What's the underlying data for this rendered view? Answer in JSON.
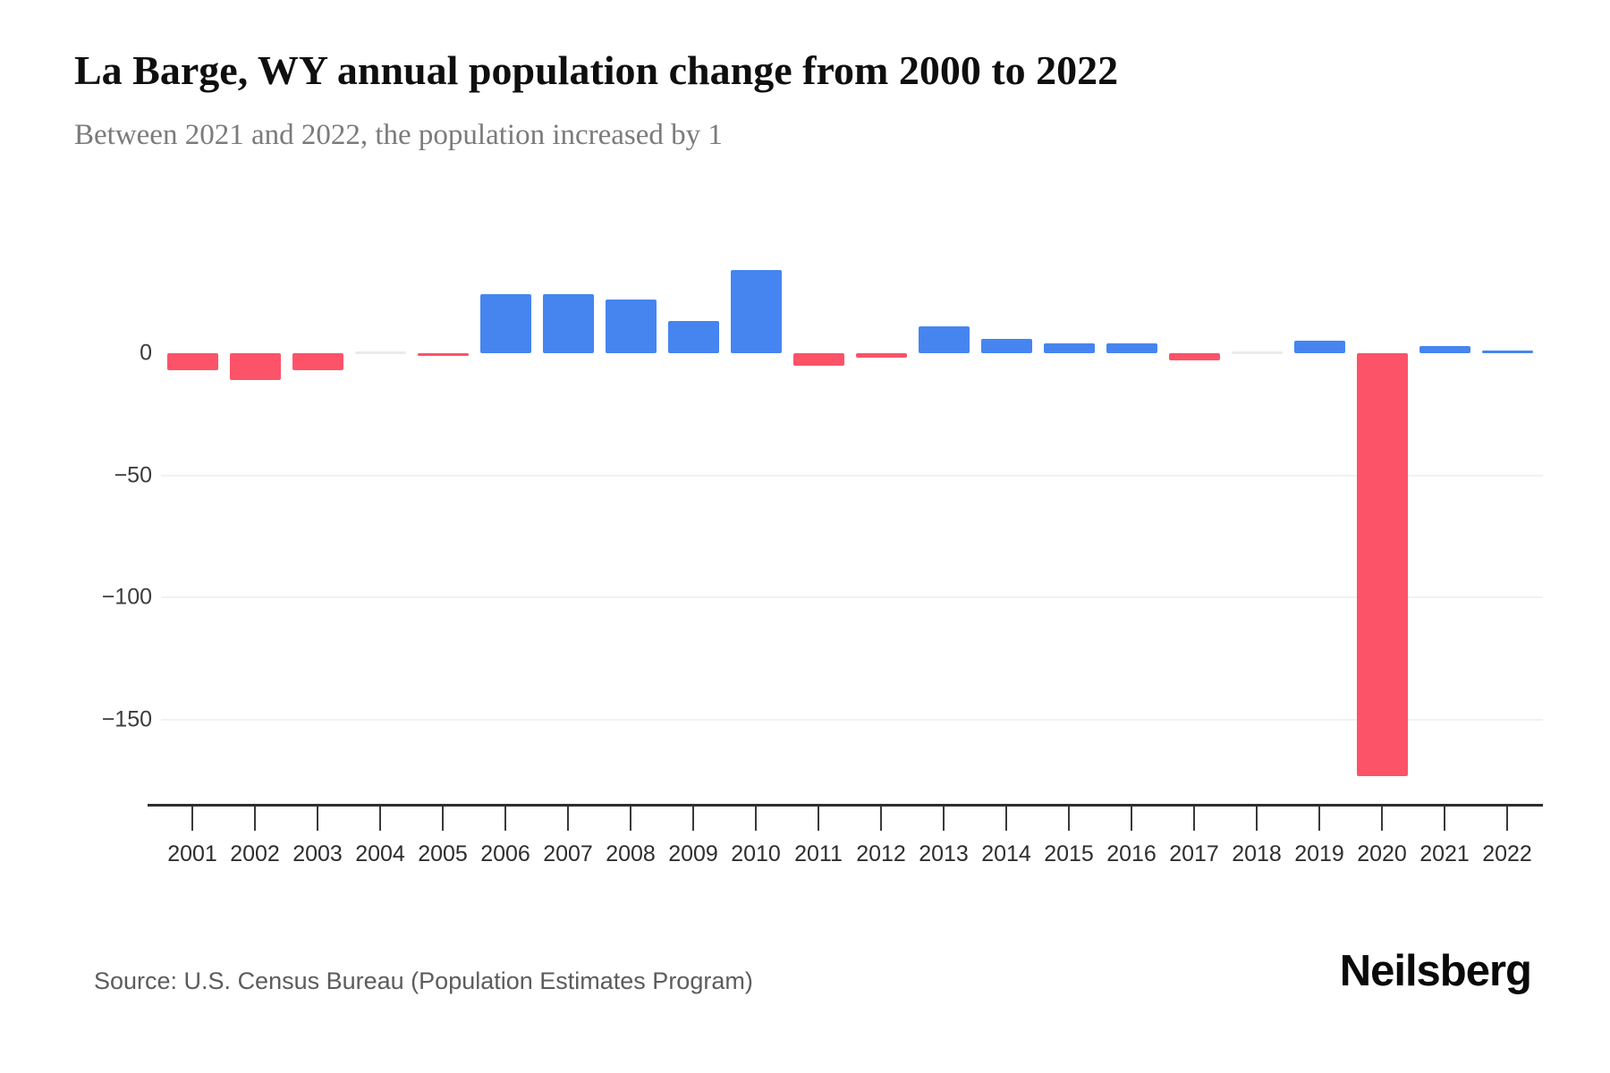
{
  "header": {
    "title": "La Barge, WY annual population change from 2000 to 2022",
    "subtitle": "Between 2021 and 2022, the population increased by 1"
  },
  "chart_data": {
    "type": "bar",
    "title": "La Barge, WY annual population change from 2000 to 2022",
    "categories": [
      "2001",
      "2002",
      "2003",
      "2004",
      "2005",
      "2006",
      "2007",
      "2008",
      "2009",
      "2010",
      "2011",
      "2012",
      "2013",
      "2014",
      "2015",
      "2016",
      "2017",
      "2018",
      "2019",
      "2020",
      "2021",
      "2022"
    ],
    "values": [
      -7,
      -11,
      -7,
      0,
      -1,
      24,
      24,
      22,
      13,
      34,
      -5,
      -2,
      11,
      6,
      4,
      4,
      -3,
      0,
      5,
      -173,
      3,
      1
    ],
    "xlabel": "",
    "ylabel": "",
    "yticks": [
      0,
      -50,
      -100,
      -150
    ],
    "ylim": [
      -183,
      40
    ],
    "grid": "horizontal gridlines at negative ticks only",
    "legend": "none",
    "colors": {
      "positive": "#4685F0",
      "negative": "#FC5368",
      "zero": "#EBEBEB",
      "gridline": "#F1F1F1",
      "axis": "#2E2E2E"
    }
  },
  "footer": {
    "source": "Source: U.S. Census Bureau (Population Estimates Program)",
    "brand": "Neilsberg"
  }
}
